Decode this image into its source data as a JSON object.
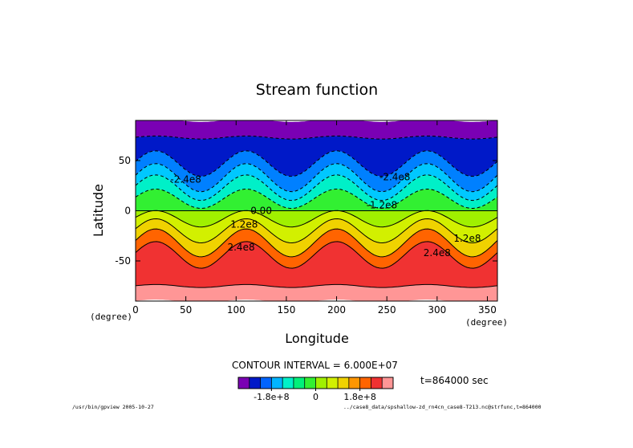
{
  "chart_data": {
    "type": "contour",
    "title": "Stream function",
    "xlabel": "Longitude",
    "ylabel": "Latitude",
    "x_unit": "(degree)",
    "y_unit": "(degree)",
    "xlim": [
      0,
      360
    ],
    "ylim": [
      -90,
      90
    ],
    "x_ticks": [
      0,
      50,
      100,
      150,
      200,
      250,
      300,
      350
    ],
    "y_ticks": [
      -50,
      0,
      50
    ],
    "contour_interval_text": "CONTOUR INTERVAL = 6.000E+07",
    "time_text": "t=864000 sec",
    "contour_labels": [
      {
        "text": "0.00",
        "lon": 125,
        "lat": 0
      },
      {
        "text": "-2.4e8",
        "lon": 50,
        "lat": 38
      },
      {
        "text": "-2.4e8",
        "lon": 258,
        "lat": 42
      },
      {
        "text": "-1.2e8",
        "lon": 245,
        "lat": 17
      },
      {
        "text": "1.2e8",
        "lon": 108,
        "lat": -27
      },
      {
        "text": "1.2e8",
        "lon": 330,
        "lat": -17
      },
      {
        "text": "2.4e8",
        "lon": 105,
        "lat": -48
      },
      {
        "text": "2.4e8",
        "lon": 300,
        "lat": -51
      }
    ],
    "bands": [
      {
        "from_lat": 90,
        "to_lat": 73,
        "color": "#7a00b4"
      },
      {
        "from_lat": 73,
        "to_lat": 47,
        "color": "#0019c8"
      },
      {
        "from_lat": 47,
        "to_lat": 33,
        "color": "#0080ff"
      },
      {
        "from_lat": 33,
        "to_lat": 23,
        "color": "#00c8ff"
      },
      {
        "from_lat": 23,
        "to_lat": 12,
        "color": "#00f0c8"
      },
      {
        "from_lat": 12,
        "to_lat": 0,
        "color": "#32f032"
      },
      {
        "from_lat": 0,
        "to_lat": -8,
        "color": "#a0f000"
      },
      {
        "from_lat": -8,
        "to_lat": -20,
        "color": "#d2f000"
      },
      {
        "from_lat": -20,
        "to_lat": -32,
        "color": "#f0d200"
      },
      {
        "from_lat": -32,
        "to_lat": -44,
        "color": "#ff6400"
      },
      {
        "from_lat": -44,
        "to_lat": -75,
        "color": "#f03232"
      },
      {
        "from_lat": -75,
        "to_lat": -90,
        "color": "#ff9696"
      }
    ],
    "colorbar": {
      "colors": [
        "#7a00b4",
        "#0019c8",
        "#0064ff",
        "#00b4ff",
        "#00f0c8",
        "#00f07a",
        "#32f032",
        "#a0f000",
        "#d2f000",
        "#f0d200",
        "#ff9600",
        "#ff6400",
        "#f03232",
        "#ff9696"
      ],
      "tick_labels": [
        "-1.8e+8",
        "0",
        "1.8e+8"
      ]
    }
  },
  "footer": {
    "left": "/usr/bin/gpview  2005-10-27",
    "right": "../case8_data/spshallow-zd_rn4cn_case8-T213.nc@strfunc,t=864000"
  }
}
